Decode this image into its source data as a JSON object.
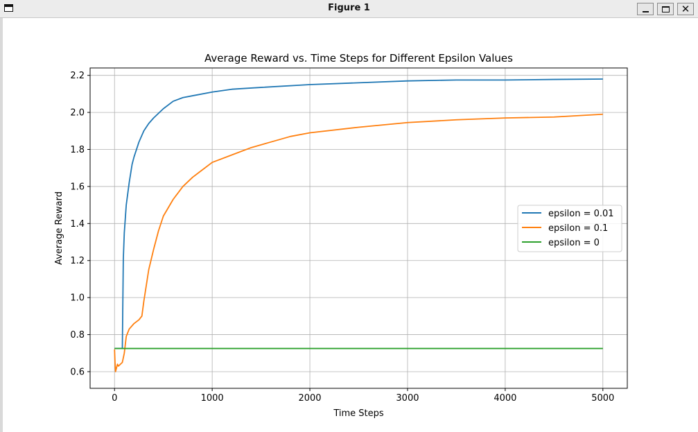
{
  "window": {
    "title": "Figure 1",
    "icons": [
      "window-icon",
      "minimize-icon",
      "maximize-icon",
      "close-icon"
    ]
  },
  "chart_data": {
    "type": "line",
    "title": "Average Reward vs. Time Steps for Different Epsilon Values",
    "xlabel": "Time Steps",
    "ylabel": "Average Reward",
    "xlim": [
      -250,
      5250
    ],
    "ylim": [
      0.51,
      2.24
    ],
    "xticks": [
      0,
      1000,
      2000,
      3000,
      4000,
      5000
    ],
    "xtick_labels": [
      "0",
      "1000",
      "2000",
      "3000",
      "4000",
      "5000"
    ],
    "yticks": [
      0.6,
      0.8,
      1.0,
      1.2,
      1.4,
      1.6,
      1.8,
      2.0,
      2.2
    ],
    "ytick_labels": [
      "0.6",
      "0.8",
      "1.0",
      "1.2",
      "1.4",
      "1.6",
      "1.8",
      "2.0",
      "2.2"
    ],
    "grid": true,
    "legend_position": "center-right",
    "series": [
      {
        "name": "epsilon = 0.01",
        "color": "#1f77b4",
        "x": [
          0,
          60,
          80,
          90,
          100,
          120,
          150,
          180,
          200,
          250,
          300,
          350,
          400,
          500,
          600,
          700,
          800,
          1000,
          1200,
          1500,
          2000,
          2500,
          3000,
          3500,
          4000,
          4500,
          5000
        ],
        "y": [
          0.725,
          0.725,
          0.725,
          1.21,
          1.35,
          1.5,
          1.62,
          1.72,
          1.76,
          1.84,
          1.9,
          1.94,
          1.97,
          2.02,
          2.06,
          2.08,
          2.09,
          2.11,
          2.125,
          2.135,
          2.15,
          2.16,
          2.17,
          2.175,
          2.175,
          2.178,
          2.18
        ]
      },
      {
        "name": "epsilon = 0.1",
        "color": "#ff7f0e",
        "x": [
          0,
          5,
          10,
          20,
          30,
          40,
          60,
          80,
          100,
          120,
          150,
          200,
          250,
          280,
          300,
          350,
          400,
          450,
          500,
          600,
          700,
          800,
          900,
          1000,
          1200,
          1400,
          1600,
          1800,
          2000,
          2500,
          3000,
          3500,
          4000,
          4500,
          5000
        ],
        "y": [
          0.72,
          0.65,
          0.6,
          0.62,
          0.64,
          0.63,
          0.64,
          0.65,
          0.7,
          0.79,
          0.83,
          0.86,
          0.88,
          0.9,
          0.98,
          1.15,
          1.26,
          1.36,
          1.44,
          1.53,
          1.6,
          1.65,
          1.69,
          1.73,
          1.77,
          1.81,
          1.84,
          1.87,
          1.89,
          1.92,
          1.945,
          1.96,
          1.97,
          1.975,
          1.99
        ]
      },
      {
        "name": "epsilon = 0",
        "color": "#2ca02c",
        "x": [
          0,
          5000
        ],
        "y": [
          0.725,
          0.725
        ]
      }
    ]
  }
}
